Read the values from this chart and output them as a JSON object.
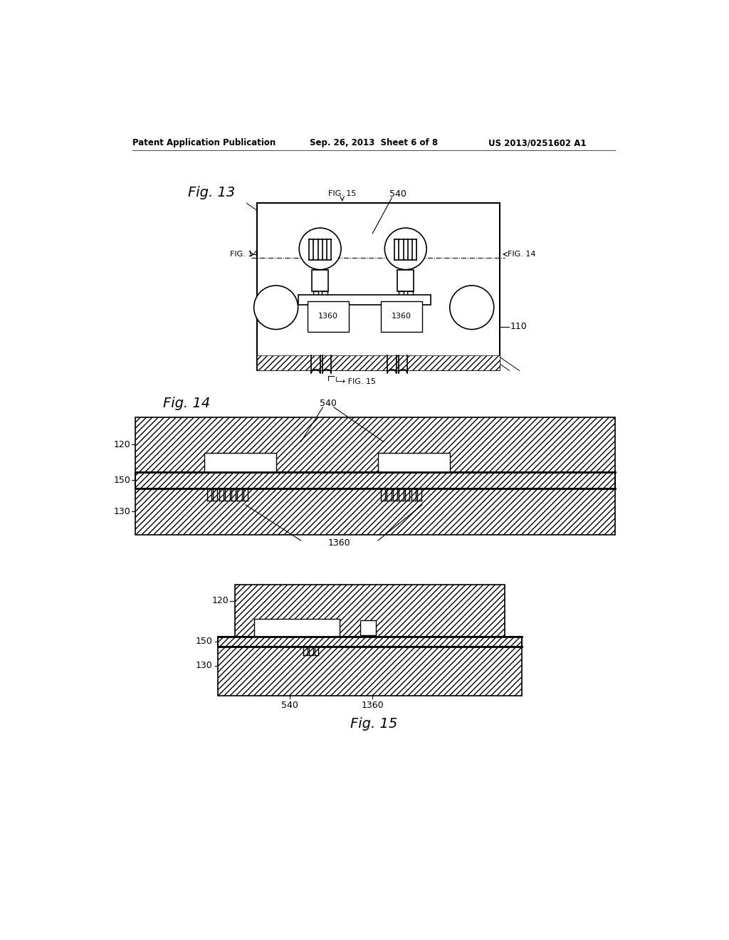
{
  "bg_color": "#ffffff",
  "header_left": "Patent Application Publication",
  "header_center": "Sep. 26, 2013  Sheet 6 of 8",
  "header_right": "US 2013/0251602 A1"
}
